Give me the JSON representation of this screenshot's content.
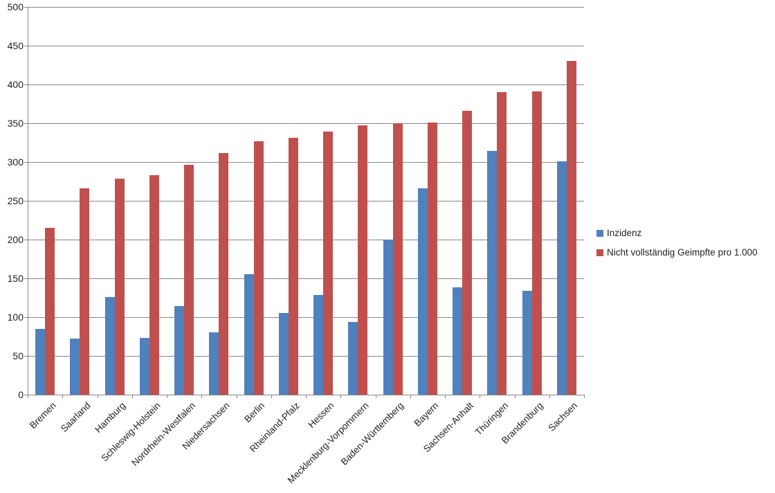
{
  "chart_data": {
    "type": "bar",
    "title": "",
    "xlabel": "",
    "ylabel": "",
    "categories": [
      "Bremen",
      "Saarland",
      "Hamburg",
      "Schleswig-Holstein",
      "Nordrhein-Westfalen",
      "Niedersachsen",
      "Berlin",
      "Rheinland-Pfalz",
      "Hessen",
      "Mecklenburg-Vorpommern",
      "Baden-Württemberg",
      "Bayern",
      "Sachsen-Anhalt",
      "Thüringen",
      "Brandenburg",
      "Sachsen"
    ],
    "series": [
      {
        "name": "Inzidenz",
        "color": "#4F81BD",
        "values": [
          85,
          72,
          126,
          73,
          114,
          80,
          155,
          105,
          129,
          94,
          200,
          266,
          138,
          314,
          134,
          301
        ]
      },
      {
        "name": "Nicht vollständig Geimpfte pro 1.000",
        "color": "#C0504D",
        "values": [
          215,
          266,
          279,
          283,
          296,
          312,
          327,
          331,
          339,
          347,
          350,
          351,
          366,
          390,
          391,
          430
        ]
      }
    ],
    "ylim": [
      0,
      500
    ],
    "ytick_step": 50,
    "ytick_labels": [
      "0",
      "50",
      "100",
      "150",
      "200",
      "250",
      "300",
      "350",
      "400",
      "450",
      "500"
    ],
    "grid": true,
    "legend_position": "right",
    "gridline_color": "#868686",
    "axis_text_color": "#1f1f1f",
    "background_color": "#ffffff"
  }
}
